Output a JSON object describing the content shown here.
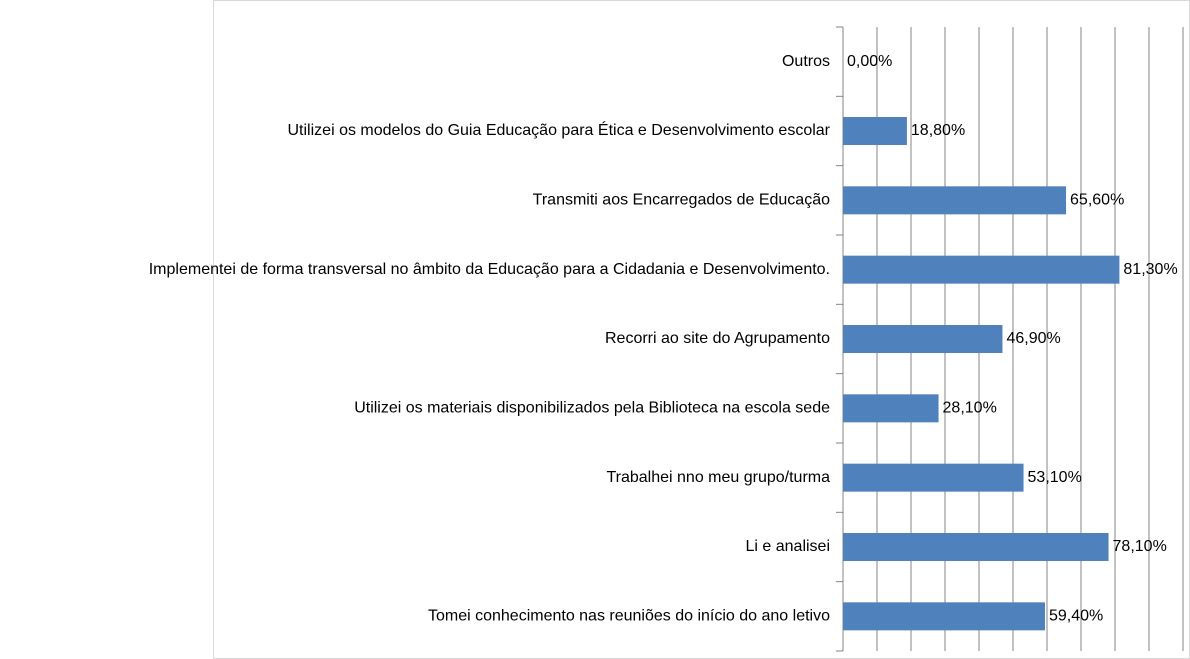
{
  "chart_data": {
    "type": "barh",
    "categories": [
      "Outros",
      "Utilizei os modelos do Guia Educação para Ética e Desenvolvimento escolar",
      "Transmiti aos Encarregados de Educação",
      "Implementei de forma transversal no âmbito da Educação para a Cidadania e Desenvolvimento.",
      "Recorri ao site do Agrupamento",
      "Utilizei os materiais disponibilizados pela Biblioteca na escola sede",
      "Trabalhei nno meu grupo/turma",
      "Li e analisei",
      "Tomei conhecimento nas reuniões do início do ano letivo"
    ],
    "values": [
      0,
      18.8,
      65.6,
      81.3,
      46.9,
      28.1,
      53.1,
      78.1,
      59.4
    ],
    "value_labels": [
      "0,00%",
      "18,80%",
      "65,60%",
      "81,30%",
      "46,90%",
      "28,10%",
      "53,10%",
      "78,10%",
      "59,40%"
    ],
    "color": "#4f81bd",
    "xlim": [
      0,
      100
    ],
    "xticks": [
      0,
      10,
      20,
      30,
      40,
      50,
      60,
      70,
      80,
      90,
      100
    ],
    "grid": true,
    "show_tick_labels": false
  }
}
